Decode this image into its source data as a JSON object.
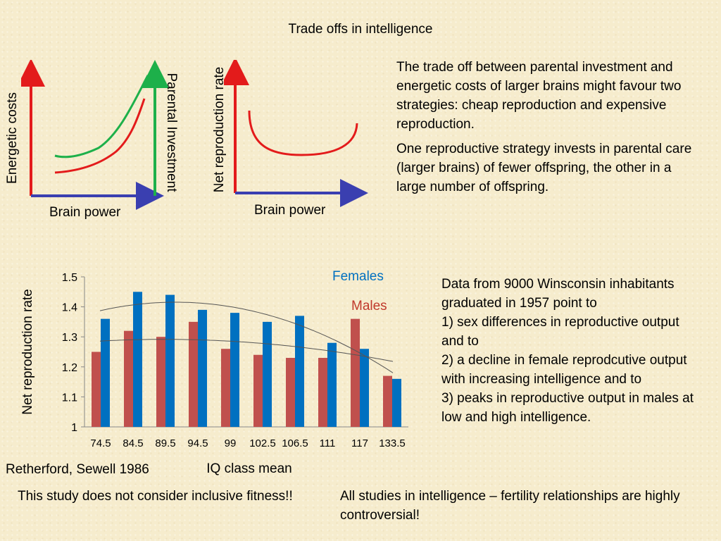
{
  "title": "Trade offs in intelligence",
  "diagram_left": {
    "ylabel_left": "Energetic costs",
    "ylabel_right": "Parental Investment",
    "xlabel": "Brain power",
    "colors": {
      "axis_y": "#e31b1b",
      "axis_x": "#3a3fb0",
      "green_curve": "#1db04a",
      "red_curve": "#e31b1b",
      "parental_axis": "#1db04a"
    }
  },
  "diagram_right": {
    "ylabel": "Net reproduction rate",
    "xlabel": "Brain power"
  },
  "text_top": {
    "p1": "The trade off between parental investment and energetic costs of larger brains might favour two strategies: cheap reproduction and expensive reproduction.",
    "p2": "One reproductive strategy invests in parental care (larger brains) of fewer offspring, the other in a large number of offspring."
  },
  "chart_data": {
    "type": "bar",
    "xlabel": "IQ class mean",
    "ylabel": "Net reproduction rate",
    "categories": [
      "74.5",
      "84.5",
      "89.5",
      "94.5",
      "99",
      "102.5",
      "106.5",
      "111",
      "117",
      "133.5"
    ],
    "ylim": [
      1,
      1.5
    ],
    "yticks": [
      "1",
      "1.1",
      "1.2",
      "1.3",
      "1.4",
      "1.5"
    ],
    "series": [
      {
        "name": "Males",
        "color": "#c0504d",
        "values": [
          1.25,
          1.32,
          1.3,
          1.35,
          1.26,
          1.24,
          1.23,
          1.23,
          1.36,
          1.17
        ]
      },
      {
        "name": "Females",
        "color": "#0070c0",
        "values": [
          1.36,
          1.45,
          1.44,
          1.39,
          1.38,
          1.35,
          1.37,
          1.28,
          1.26,
          1.16
        ]
      }
    ],
    "grid": false
  },
  "citation": "Retherford, Sewell 1986",
  "text_bottom_right": "Data from 9000 Winsconsin inhabitants graduated in 1957 point to\n1) sex differences in reproductive output and to\n2) a decline in female reprodcutive output with increasing intelligence and to\n3) peaks in reproductive output in males at low and high intelligence.",
  "note_left": "This study does not consider inclusive fitness!!",
  "note_right": "All studies in intelligence – fertility relationships are highly controversial!"
}
